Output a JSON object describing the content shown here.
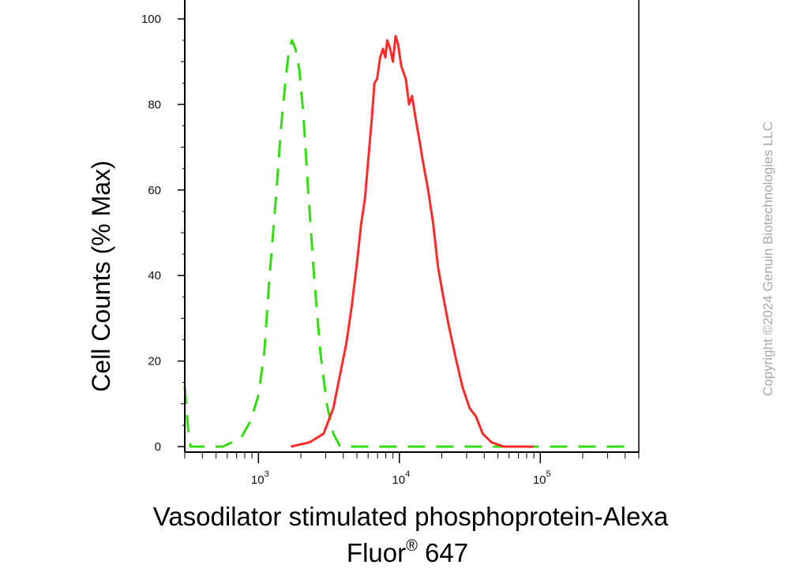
{
  "chart_data": {
    "type": "line",
    "xscale": "log",
    "xlim": [
      300,
      500000
    ],
    "ylim": [
      0,
      100
    ],
    "grid": false,
    "ylabel": "Cell Counts (% Max)",
    "xlabel_line1": "Vasodilator stimulated phosphoprotein-Alexa",
    "xlabel_line2_base": "Fluor",
    "xlabel_line2_sup": "®",
    "xlabel_line2_rest": " 647",
    "y_ticks": [
      {
        "value": 0,
        "label": "0"
      },
      {
        "value": 20,
        "label": "20"
      },
      {
        "value": 40,
        "label": "40"
      },
      {
        "value": 60,
        "label": "60"
      },
      {
        "value": 80,
        "label": "80"
      },
      {
        "value": 100,
        "label": "100"
      }
    ],
    "x_ticks": [
      {
        "value": 1000,
        "base": "10",
        "exp": "3"
      },
      {
        "value": 10000,
        "base": "10",
        "exp": "4"
      },
      {
        "value": 100000,
        "base": "10",
        "exp": "5"
      }
    ],
    "series": [
      {
        "color": "#33dd11",
        "dash": true,
        "points": [
          [
            300,
            14
          ],
          [
            315,
            5
          ],
          [
            330,
            0
          ],
          [
            420,
            0
          ],
          [
            560,
            0
          ],
          [
            750,
            2
          ],
          [
            880,
            6
          ],
          [
            1000,
            12
          ],
          [
            1100,
            22
          ],
          [
            1200,
            40
          ],
          [
            1330,
            58
          ],
          [
            1450,
            75
          ],
          [
            1560,
            86
          ],
          [
            1650,
            93
          ],
          [
            1730,
            95
          ],
          [
            1830,
            93
          ],
          [
            1950,
            88
          ],
          [
            2080,
            78
          ],
          [
            2250,
            60
          ],
          [
            2480,
            40
          ],
          [
            2750,
            22
          ],
          [
            3050,
            10
          ],
          [
            3400,
            3
          ],
          [
            3800,
            0
          ],
          [
            5000,
            0
          ],
          [
            8000,
            0
          ],
          [
            20000,
            0
          ],
          [
            50000,
            0
          ],
          [
            100000,
            0
          ],
          [
            300000,
            0
          ],
          [
            450000,
            0
          ]
        ]
      },
      {
        "color": "#ff2b2b",
        "dash": false,
        "points": [
          [
            1700,
            0
          ],
          [
            2300,
            1
          ],
          [
            2900,
            3
          ],
          [
            3400,
            9
          ],
          [
            3800,
            17
          ],
          [
            4200,
            24
          ],
          [
            4600,
            33
          ],
          [
            5000,
            43
          ],
          [
            5350,
            52
          ],
          [
            5700,
            58
          ],
          [
            6050,
            68
          ],
          [
            6350,
            76
          ],
          [
            6650,
            85
          ],
          [
            6950,
            86
          ],
          [
            7300,
            91
          ],
          [
            7650,
            93
          ],
          [
            7950,
            91
          ],
          [
            8200,
            95
          ],
          [
            8600,
            93
          ],
          [
            9000,
            90
          ],
          [
            9400,
            96
          ],
          [
            9800,
            94
          ],
          [
            10300,
            89
          ],
          [
            11100,
            86
          ],
          [
            11700,
            80
          ],
          [
            12300,
            82
          ],
          [
            13000,
            77
          ],
          [
            13800,
            72
          ],
          [
            14800,
            66
          ],
          [
            16000,
            60
          ],
          [
            17400,
            52
          ],
          [
            18800,
            42
          ],
          [
            20500,
            35
          ],
          [
            22500,
            28
          ],
          [
            25000,
            21
          ],
          [
            28000,
            14
          ],
          [
            31500,
            9
          ],
          [
            35000,
            7
          ],
          [
            39000,
            3
          ],
          [
            45000,
            1
          ],
          [
            55000,
            0
          ],
          [
            70000,
            0
          ],
          [
            90000,
            0
          ]
        ]
      }
    ]
  },
  "watermark": "Copyright ©2024 Genuin Biotechnologies LLC"
}
